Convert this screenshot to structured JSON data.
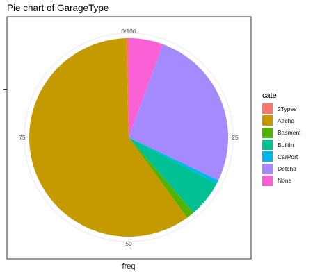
{
  "chart_data": {
    "type": "pie",
    "title": "Pie chart of GarageType",
    "xlabel": "freq",
    "ylabel": "",
    "legend_title": "cate",
    "legend_position": "right",
    "radial_ticks": [
      "0/100",
      "25",
      "50",
      "75"
    ],
    "categories": [
      "2Types",
      "Attchd",
      "Basment",
      "BuiltIn",
      "CarPort",
      "Detchd",
      "None"
    ],
    "values": [
      0.4,
      59.6,
      1.3,
      6.0,
      0.6,
      26.5,
      5.6
    ],
    "draw_order": [
      "None",
      "Detchd",
      "CarPort",
      "BuiltIn",
      "Basment",
      "Attchd",
      "2Types"
    ],
    "colors": {
      "2Types": "#F8766D",
      "Attchd": "#C49A00",
      "Basment": "#53B400",
      "BuiltIn": "#00C094",
      "CarPort": "#00B6EB",
      "Detchd": "#A58AFF",
      "None": "#FB61D7"
    },
    "grid": true
  }
}
